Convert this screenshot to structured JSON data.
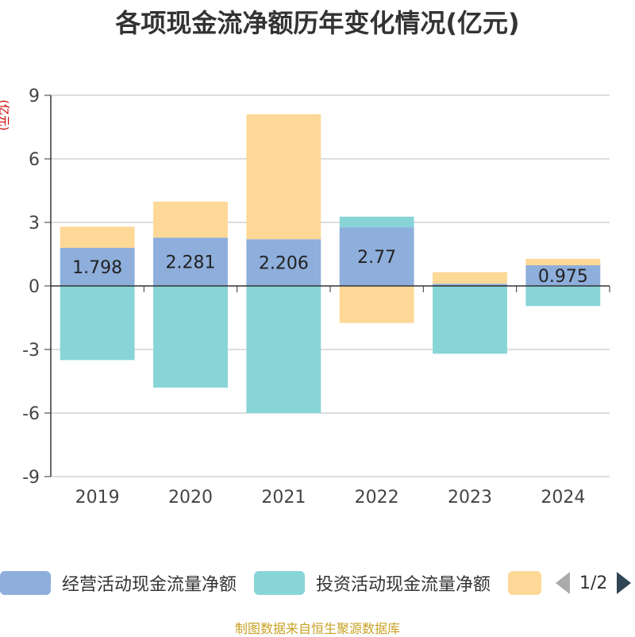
{
  "title": "各项现金流净额历年变化情况(亿元)",
  "footer": "制图数据来自恒生聚源数据库",
  "legend": {
    "page": "1/2",
    "prev_icon": "chevron-left-icon",
    "next_icon": "chevron-right-icon"
  },
  "chart_data": {
    "type": "bar",
    "stacked": true,
    "ylabel": "(亿元)",
    "ylim": [
      -9,
      9
    ],
    "yticks": [
      9,
      6,
      3,
      0,
      -3,
      -6,
      -9
    ],
    "categories": [
      "2019",
      "2020",
      "2021",
      "2022",
      "2023",
      "2024"
    ],
    "grid": true,
    "legend_position": "bottom",
    "series": [
      {
        "name": "经营活动现金流量净额",
        "color": "#8eaedb",
        "values": [
          1.798,
          2.281,
          2.206,
          2.77,
          0.1,
          0.975
        ],
        "labels": [
          "1.798",
          "2.281",
          "2.206",
          "2.77",
          "",
          "0.975"
        ]
      },
      {
        "name": "投资活动现金流量净额",
        "color": "#88d5d8",
        "values": [
          -3.5,
          -4.8,
          -6.0,
          0.5,
          -3.2,
          -0.95
        ]
      },
      {
        "name": "",
        "color": "#fed897",
        "values": [
          1.0,
          1.7,
          5.9,
          -1.75,
          0.55,
          0.3
        ]
      }
    ]
  }
}
